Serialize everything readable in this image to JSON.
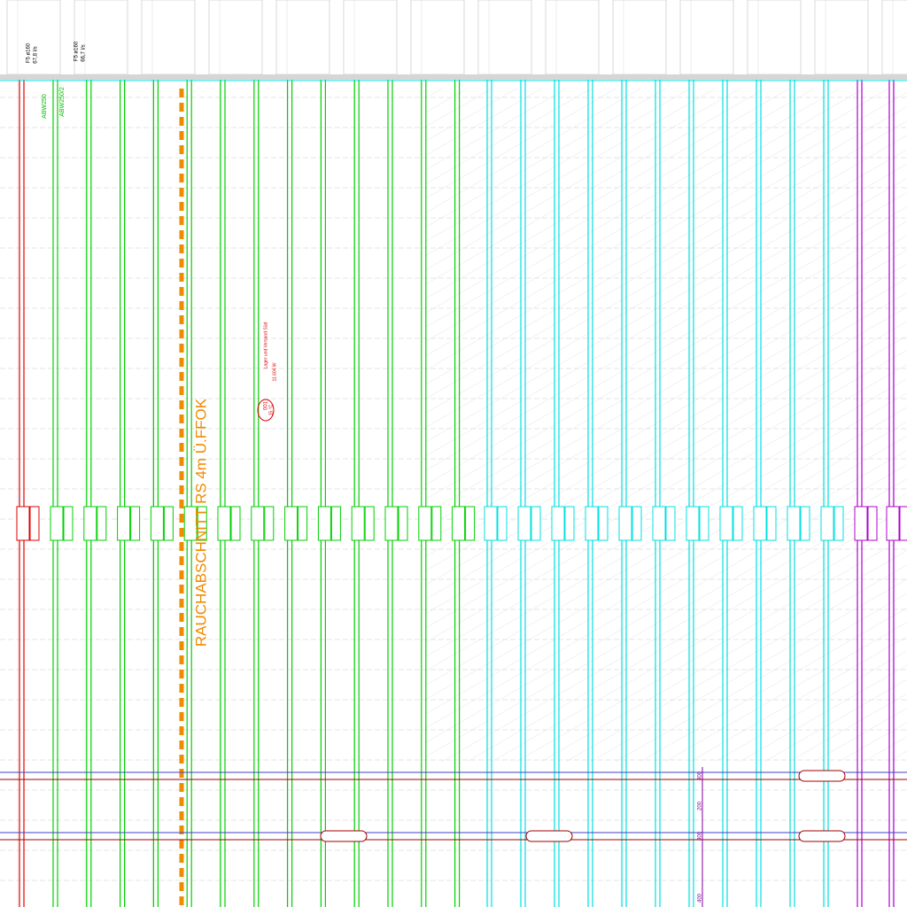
{
  "plan": {
    "zone_label": "RAUCHABSCHNITT RS 4m Ü.FFOK",
    "room": {
      "number": "001",
      "name": "Lager und Versand Süd",
      "temperature": "15 °C",
      "load": "11.604 W"
    },
    "outlets": [
      {
        "tag": "ABW250",
        "duct": "F5 ø160",
        "flow": "67,8 l/s"
      },
      {
        "tag": "ABW250/2",
        "duct": "F5 ø160",
        "flow": "66,7 l/s"
      }
    ],
    "dimensions": [
      "400",
      "200",
      "400",
      "400"
    ]
  }
}
